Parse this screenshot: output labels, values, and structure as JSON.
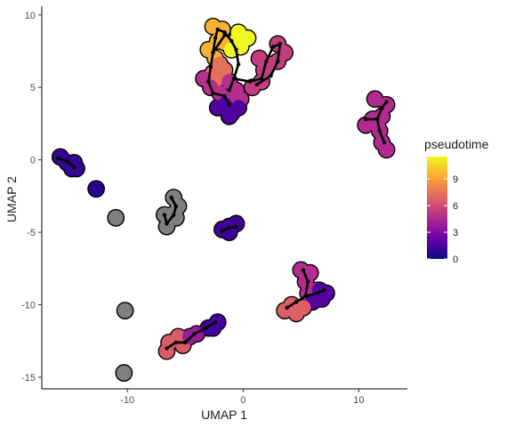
{
  "chart_data": {
    "type": "scatter",
    "xlabel": "UMAP 1",
    "ylabel": "UMAP 2",
    "xlim": [
      -17.4,
      14.2
    ],
    "ylim": [
      -15.8,
      10.6
    ],
    "x_ticks": [
      -10,
      0,
      10
    ],
    "x_tick_labels": [
      "-10",
      "0",
      "10"
    ],
    "y_ticks": [
      -15,
      -10,
      -5,
      0,
      5,
      10
    ],
    "y_tick_labels": [
      "-15",
      "-10",
      "-5",
      "0",
      "5",
      "10"
    ],
    "grid": false,
    "legend": {
      "title": "pseudotime",
      "placement": "right",
      "range": [
        0,
        11.5
      ],
      "ticks": [
        0,
        3,
        6,
        9
      ],
      "tick_labels": [
        "0",
        "3",
        "6",
        "9"
      ],
      "colormap": [
        "#0d0887",
        "#6a00a8",
        "#b12a90",
        "#e16462",
        "#fca636",
        "#f0f921"
      ]
    },
    "na_color": "#7f7f7f",
    "outline_color": "#000000",
    "trajectory_color": "#000000",
    "clusters": [
      {
        "points": [
          [
            -2.6,
            9.2
          ],
          [
            -1.8,
            9.0
          ],
          [
            -2.2,
            8.2
          ],
          [
            -3.0,
            7.6
          ],
          [
            -1.6,
            8.1
          ],
          [
            -2.4,
            7.0
          ]
        ],
        "pseudotime": 9.5
      },
      {
        "points": [
          [
            -0.4,
            8.8
          ],
          [
            -0.2,
            7.8
          ],
          [
            -1.0,
            7.6
          ],
          [
            0.4,
            8.4
          ],
          [
            -0.6,
            8.2
          ]
        ],
        "pseudotime": 11.4
      },
      {
        "points": [
          [
            -2.0,
            6.6
          ],
          [
            -2.6,
            6.0
          ],
          [
            -1.6,
            6.2
          ],
          [
            -2.2,
            5.6
          ]
        ],
        "pseudotime": 7.3
      },
      {
        "points": [
          [
            1.4,
            7.0
          ],
          [
            2.2,
            6.6
          ],
          [
            1.8,
            6.2
          ],
          [
            3.0,
            8.0
          ],
          [
            3.6,
            7.4
          ],
          [
            3.0,
            6.8
          ],
          [
            1.6,
            5.4
          ],
          [
            0.8,
            5.0
          ]
        ],
        "pseudotime": 5.4
      },
      {
        "points": [
          [
            -3.4,
            5.6
          ],
          [
            -2.8,
            5.0
          ],
          [
            -1.2,
            5.4
          ],
          [
            -0.6,
            4.8
          ],
          [
            -1.2,
            4.2
          ],
          [
            -2.0,
            4.6
          ],
          [
            -0.2,
            4.2
          ]
        ],
        "pseudotime": 4.8
      },
      {
        "points": [
          [
            -1.6,
            3.8
          ],
          [
            -1.0,
            3.2
          ],
          [
            -2.2,
            3.6
          ],
          [
            -0.4,
            3.6
          ],
          [
            -1.2,
            3.0
          ]
        ],
        "pseudotime": 1.6
      },
      {
        "points": [
          [
            11.4,
            4.2
          ],
          [
            12.4,
            3.8
          ],
          [
            12.0,
            3.0
          ],
          [
            11.2,
            2.8
          ],
          [
            10.6,
            2.4
          ],
          [
            11.8,
            2.0
          ],
          [
            12.0,
            1.2
          ],
          [
            12.4,
            0.7
          ],
          [
            11.6,
            2.4
          ]
        ],
        "pseudotime": 4.6
      },
      {
        "points": [
          [
            -15.8,
            0.2
          ],
          [
            -15.2,
            -0.2
          ],
          [
            -14.6,
            -0.2
          ],
          [
            -14.4,
            -0.6
          ],
          [
            -14.8,
            -0.6
          ]
        ],
        "pseudotime": 1.0
      },
      {
        "points": [
          [
            -12.7,
            -2.0
          ]
        ],
        "pseudotime": 0.6
      },
      {
        "points": [
          [
            -11.0,
            -4.0
          ]
        ],
        "pseudotime": null
      },
      {
        "points": [
          [
            -6.0,
            -2.6
          ],
          [
            -5.6,
            -3.2
          ],
          [
            -6.2,
            -3.8
          ],
          [
            -5.8,
            -4.0
          ],
          [
            -6.6,
            -4.6
          ],
          [
            -6.8,
            -3.8
          ]
        ],
        "pseudotime": null
      },
      {
        "points": [
          [
            -1.8,
            -4.8
          ],
          [
            -1.2,
            -4.6
          ],
          [
            -0.6,
            -4.4
          ],
          [
            -1.2,
            -5.0
          ]
        ],
        "pseudotime": 1.2
      },
      {
        "points": [
          [
            -10.2,
            -10.4
          ]
        ],
        "pseudotime": null
      },
      {
        "points": [
          [
            -10.3,
            -14.7
          ]
        ],
        "pseudotime": null
      },
      {
        "points": [
          [
            5.0,
            -7.6
          ],
          [
            5.4,
            -8.4
          ],
          [
            5.6,
            -9.2
          ],
          [
            6.4,
            -9.0
          ],
          [
            5.8,
            -7.8
          ]
        ],
        "pseudotime": 4.7
      },
      {
        "points": [
          [
            6.6,
            -9.0
          ],
          [
            7.2,
            -9.2
          ],
          [
            6.8,
            -9.6
          ],
          [
            6.0,
            -9.8
          ]
        ],
        "pseudotime": 1.8
      },
      {
        "points": [
          [
            4.2,
            -10.0
          ],
          [
            3.6,
            -10.4
          ],
          [
            4.6,
            -10.6
          ],
          [
            5.2,
            -10.2
          ]
        ],
        "pseudotime": 6.7
      },
      {
        "points": [
          [
            -6.4,
            -12.6
          ],
          [
            -5.6,
            -12.2
          ],
          [
            -6.6,
            -13.2
          ],
          [
            -5.2,
            -12.8
          ]
        ],
        "pseudotime": 6.6
      },
      {
        "points": [
          [
            -4.6,
            -12.2
          ],
          [
            -4.0,
            -12.0
          ]
        ],
        "pseudotime": 3.8
      },
      {
        "points": [
          [
            -3.0,
            -11.6
          ],
          [
            -2.2,
            -11.2
          ],
          [
            -2.6,
            -11.6
          ]
        ],
        "pseudotime": 1.4
      }
    ],
    "trajectories": [
      [
        [
          -1.2,
          3.8
        ],
        [
          -1.6,
          4.4
        ],
        [
          -2.6,
          4.6
        ],
        [
          -3.0,
          5.4
        ],
        [
          -2.8,
          6.4
        ],
        [
          -2.6,
          7.4
        ],
        [
          -2.4,
          8.4
        ],
        [
          -2.2,
          9.0
        ],
        [
          -1.6,
          8.8
        ],
        [
          -1.0,
          8.2
        ],
        [
          -0.6,
          7.6
        ],
        [
          -0.4,
          6.6
        ],
        [
          -0.8,
          5.6
        ],
        [
          -1.2,
          4.8
        ]
      ],
      [
        [
          -2.6,
          7.4
        ],
        [
          -1.6,
          8.6
        ]
      ],
      [
        [
          -0.8,
          5.6
        ],
        [
          0.6,
          5.4
        ],
        [
          1.6,
          5.6
        ],
        [
          2.0,
          6.8
        ],
        [
          2.6,
          7.8
        ],
        [
          3.2,
          8.0
        ],
        [
          3.0,
          6.8
        ],
        [
          2.4,
          5.8
        ],
        [
          1.2,
          5.2
        ]
      ],
      [
        [
          10.6,
          2.8
        ],
        [
          11.6,
          2.8
        ],
        [
          12.0,
          3.6
        ],
        [
          12.4,
          4.0
        ]
      ],
      [
        [
          11.6,
          2.8
        ],
        [
          11.8,
          2.0
        ],
        [
          12.2,
          1.2
        ]
      ],
      [
        [
          -16.0,
          0.1
        ],
        [
          -15.2,
          -0.1
        ],
        [
          -14.6,
          -0.5
        ]
      ],
      [
        [
          -6.2,
          -2.6
        ],
        [
          -5.8,
          -3.2
        ],
        [
          -6.0,
          -3.8
        ],
        [
          -6.6,
          -4.4
        ],
        [
          -6.8,
          -3.8
        ]
      ],
      [
        [
          -1.8,
          -4.9
        ],
        [
          -1.2,
          -4.7
        ],
        [
          -0.6,
          -4.6
        ]
      ],
      [
        [
          3.8,
          -10.2
        ],
        [
          4.6,
          -9.8
        ],
        [
          5.4,
          -9.4
        ],
        [
          6.4,
          -9.2
        ],
        [
          7.0,
          -9.0
        ]
      ],
      [
        [
          5.4,
          -9.4
        ],
        [
          5.6,
          -8.4
        ],
        [
          5.2,
          -7.6
        ]
      ],
      [
        [
          -6.6,
          -13.0
        ],
        [
          -5.8,
          -12.6
        ],
        [
          -5.0,
          -12.6
        ],
        [
          -4.2,
          -12.0
        ],
        [
          -3.2,
          -11.6
        ],
        [
          -2.4,
          -11.2
        ]
      ]
    ]
  }
}
